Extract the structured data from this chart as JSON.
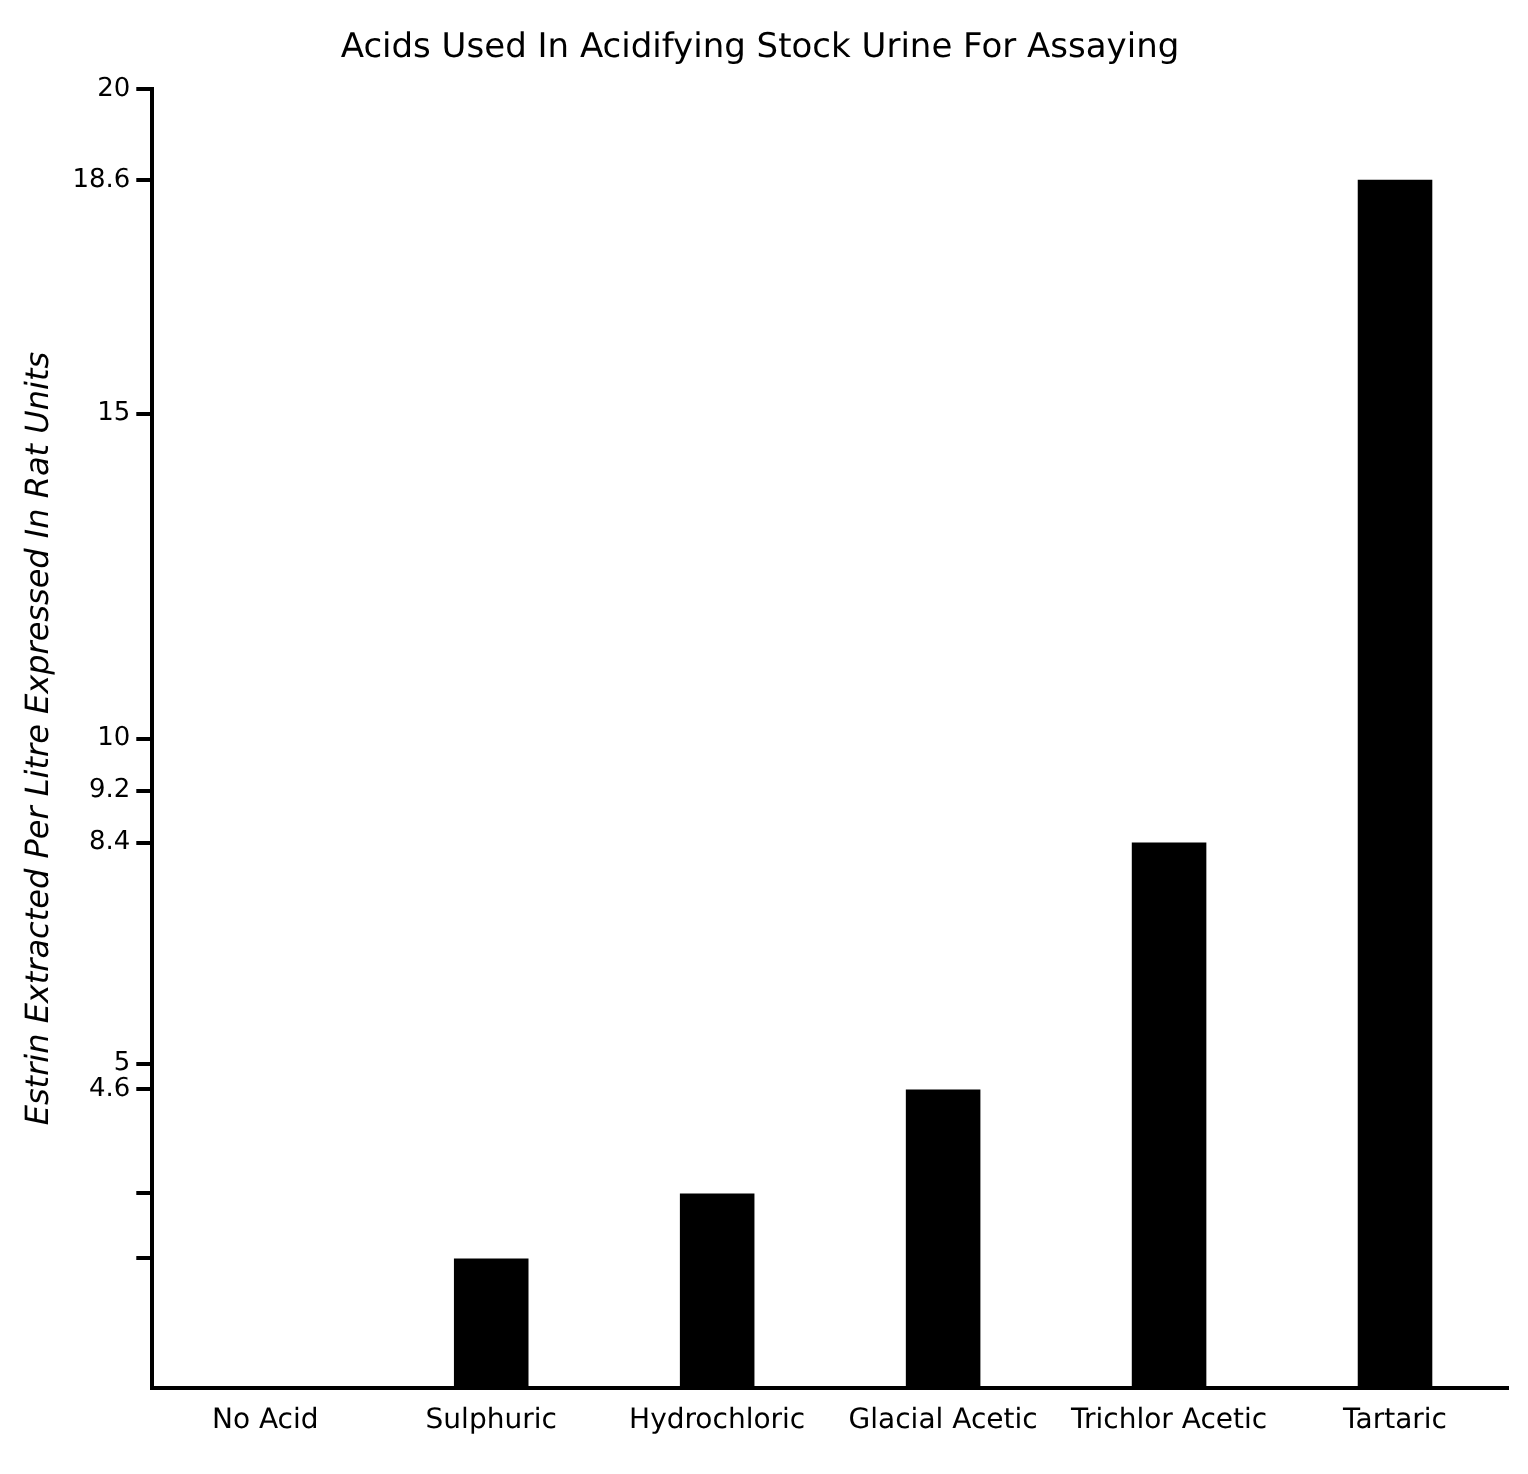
{
  "chart_data": {
    "type": "bar",
    "title": "Acids Used In Acidifying Stock Urine For Assaying",
    "ylabel": "Estrin Extracted Per Litre Expressed In Rat Units",
    "categories": [
      "No Acid",
      "Sulphuric",
      "Hydrochloric",
      "Glacial Acetic",
      "Trichlor Acetic",
      "Tartaric"
    ],
    "values": [
      0,
      2,
      3,
      4.6,
      8.4,
      18.6
    ],
    "color": "#000000",
    "ylim": [
      0,
      20
    ],
    "yticks": [
      {
        "value": 2,
        "label": null
      },
      {
        "value": 3,
        "label": null
      },
      4.6,
      5,
      8.4,
      9.2,
      10,
      15,
      18.6,
      20
    ],
    "grid": false,
    "legend": false
  }
}
